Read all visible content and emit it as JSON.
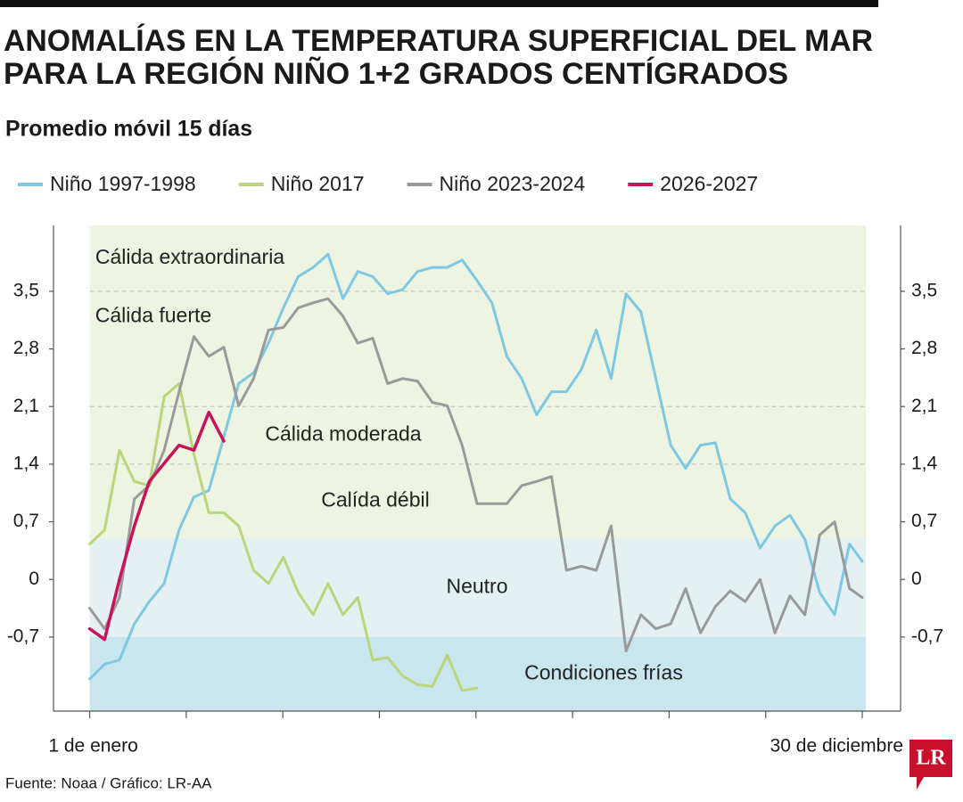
{
  "chart_data": {
    "type": "line",
    "title": [
      "ANOMALÍAS EN LA TEMPERATURA SUPERFICIAL DEL MAR",
      "PARA LA REGIÓN NIÑO 1+2 GRADOS CENTÍGRADOS"
    ],
    "subtitle": "Promedio móvil 15 días",
    "source": "Fuente: Noaa / Gráfico: LR-AA",
    "logo": "LR",
    "x": [
      1,
      8,
      15,
      22,
      29,
      36,
      43,
      50,
      57,
      64,
      71,
      78,
      85,
      92,
      99,
      106,
      113,
      120,
      127,
      134,
      141,
      148,
      155,
      162,
      169,
      176,
      183,
      190,
      197,
      204,
      211,
      218,
      225,
      232,
      239,
      246,
      253,
      260,
      267,
      274,
      281,
      288,
      295,
      302,
      309,
      316,
      323,
      330,
      337,
      344,
      351,
      358,
      364
    ],
    "xlim": [
      -16,
      382
    ],
    "xticks": [
      {
        "value": 1,
        "label": "1 de enero"
      },
      {
        "value": 364,
        "label": "30 de diciembre"
      }
    ],
    "ylim": [
      -1.6,
      4.3
    ],
    "yticks": [
      {
        "value": -0.7,
        "label": "-0,7"
      },
      0,
      {
        "value": 0.7,
        "label": "0,7"
      },
      {
        "value": 1.4,
        "label": "1,4"
      },
      {
        "value": 2.1,
        "label": "2,1"
      },
      {
        "value": 2.8,
        "label": "2,8"
      },
      {
        "value": 3.5,
        "label": "3,5"
      }
    ],
    "regions": [
      {
        "label": "Cálida extraordinaria",
        "from": 3.5,
        "to": 4.3,
        "color": "#eef4e2"
      },
      {
        "label": "Cálida fuerte",
        "from": 2.1,
        "to": 3.5,
        "color": "#eef4e2"
      },
      {
        "label": "Cálida moderada",
        "from": 1.4,
        "to": 2.1,
        "color": "#eef4e2"
      },
      {
        "label": "Calída débil",
        "from": 0.5,
        "to": 1.4,
        "color": "#eef4e2"
      },
      {
        "label": "Neutro",
        "from": -0.7,
        "to": 0.5,
        "color": "#e4f0f2"
      },
      {
        "label": "Condiciones frías",
        "from": -1.6,
        "to": -0.7,
        "color": "#c9e6ef"
      }
    ],
    "series": [
      {
        "name": "Niño 1997-1998",
        "color": "#7ec8e3",
        "values": [
          -1.21,
          -1.03,
          -0.98,
          -0.54,
          -0.27,
          -0.05,
          0.6,
          1.0,
          1.08,
          1.73,
          2.38,
          2.51,
          2.87,
          3.3,
          3.68,
          3.79,
          3.95,
          3.41,
          3.74,
          3.68,
          3.47,
          3.52,
          3.74,
          3.79,
          3.79,
          3.88,
          3.63,
          3.36,
          2.71,
          2.44,
          2.0,
          2.28,
          2.28,
          2.55,
          3.03,
          2.44,
          3.47,
          3.25,
          2.44,
          1.63,
          1.35,
          1.63,
          1.66,
          0.98,
          0.81,
          0.38,
          0.65,
          0.78,
          0.49,
          -0.16,
          -0.43,
          0.43,
          0.22
        ]
      },
      {
        "name": "Niño 2017",
        "color": "#b9d67a",
        "values": [
          0.43,
          0.6,
          1.57,
          1.19,
          1.14,
          2.22,
          2.38,
          1.52,
          0.81,
          0.81,
          0.65,
          0.11,
          -0.05,
          0.27,
          -0.16,
          -0.43,
          -0.05,
          -0.43,
          -0.22,
          -0.98,
          -0.95,
          -1.17,
          -1.28,
          -1.3,
          -0.92,
          -1.35,
          -1.32,
          null,
          null,
          null,
          null,
          null,
          null,
          null,
          null,
          null,
          null,
          null,
          null,
          null,
          null,
          null,
          null,
          null,
          null,
          null,
          null,
          null,
          null,
          null,
          null,
          null,
          null
        ]
      },
      {
        "name": "Niño 2023-2024",
        "color": "#9a9a9a",
        "values": [
          -0.35,
          -0.6,
          -0.22,
          0.98,
          1.14,
          1.57,
          2.28,
          2.95,
          2.71,
          2.82,
          2.11,
          2.44,
          3.03,
          3.06,
          3.3,
          3.36,
          3.41,
          3.2,
          2.87,
          2.93,
          2.38,
          2.44,
          2.41,
          2.15,
          2.11,
          1.63,
          0.92,
          0.92,
          0.92,
          1.14,
          1.19,
          1.25,
          0.11,
          0.16,
          0.11,
          0.65,
          -0.87,
          -0.43,
          -0.6,
          -0.54,
          -0.11,
          -0.65,
          -0.33,
          -0.14,
          -0.27,
          0,
          -0.65,
          -0.2,
          -0.43,
          0.54,
          0.7,
          -0.11,
          -0.22
        ]
      },
      {
        "name": "2026-2027",
        "color": "#c8145a",
        "values": [
          -0.6,
          -0.73,
          0,
          0.65,
          1.19,
          1.41,
          1.63,
          1.57,
          2.03,
          1.68,
          null,
          null,
          null,
          null,
          null,
          null,
          null,
          null,
          null,
          null,
          null,
          null,
          null,
          null,
          null,
          null,
          null,
          null,
          null,
          null,
          null,
          null,
          null,
          null,
          null,
          null,
          null,
          null,
          null,
          null,
          null,
          null,
          null,
          null,
          null,
          null,
          null,
          null,
          null,
          null,
          null,
          null,
          null
        ]
      }
    ]
  }
}
